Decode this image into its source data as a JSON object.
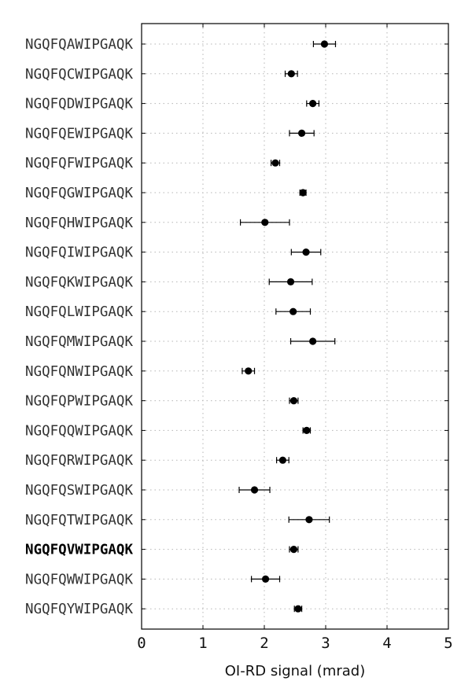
{
  "chart_data": {
    "type": "scatter",
    "orientation": "horizontal",
    "title": "",
    "xlabel": "OI-RD signal (mrad)",
    "ylabel": "",
    "xlim": [
      0,
      5
    ],
    "xticks": [
      "0",
      "1",
      "2",
      "3",
      "4",
      "5"
    ],
    "grid": true,
    "categories": [
      "NGQFQAWIPGAQK",
      "NGQFQCWIPGAQK",
      "NGQFQDWIPGAQK",
      "NGQFQEWIPGAQK",
      "NGQFQFWIPGAQK",
      "NGQFQGWIPGAQK",
      "NGQFQHWIPGAQK",
      "NGQFQIWIPGAQK",
      "NGQFQKWIPGAQK",
      "NGQFQLWIPGAQK",
      "NGQFQMWIPGAQK",
      "NGQFQNWIPGAQK",
      "NGQFQPWIPGAQK",
      "NGQFQQWIPGAQK",
      "NGQFQRWIPGAQK",
      "NGQFQSWIPGAQK",
      "NGQFQTWIPGAQK",
      "NGQFQVWIPGAQK",
      "NGQFQWWIPGAQK",
      "NGQFQYWIPGAQK"
    ],
    "highlight": "NGQFQVWIPGAQK",
    "values": [
      2.98,
      2.44,
      2.79,
      2.61,
      2.18,
      2.63,
      2.01,
      2.68,
      2.43,
      2.47,
      2.79,
      1.74,
      2.48,
      2.69,
      2.3,
      1.84,
      2.73,
      2.48,
      2.02,
      2.55
    ],
    "errors": [
      0.18,
      0.1,
      0.1,
      0.2,
      0.07,
      0.05,
      0.4,
      0.24,
      0.35,
      0.28,
      0.36,
      0.1,
      0.07,
      0.06,
      0.1,
      0.25,
      0.33,
      0.07,
      0.23,
      0.06
    ],
    "colors": {
      "marker": "#000000",
      "grid": "#b5b5b5",
      "label": "#333333"
    }
  }
}
